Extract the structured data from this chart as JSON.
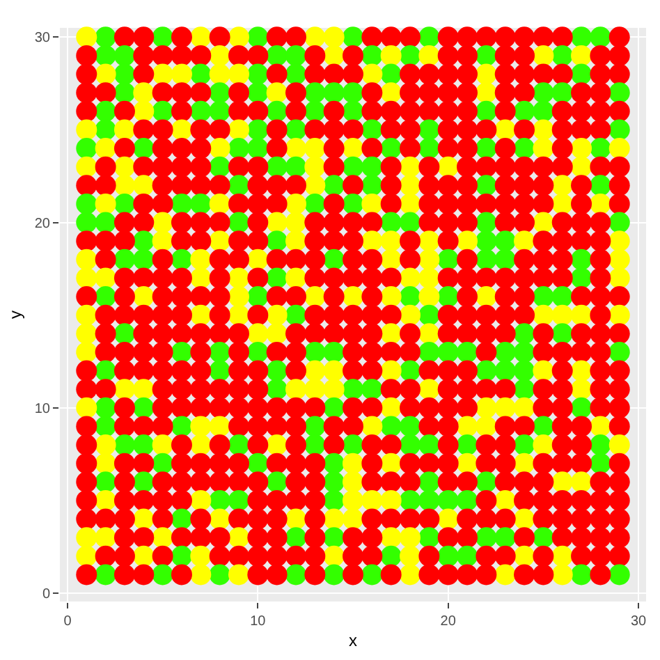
{
  "chart_data": {
    "type": "scatter",
    "xlabel": "x",
    "ylabel": "y",
    "xlim": [
      -0.4,
      30.4
    ],
    "ylim": [
      -0.45,
      30.5
    ],
    "xticks": [
      0,
      10,
      20,
      30
    ],
    "yticks": [
      0,
      10,
      20,
      30
    ],
    "grid": true,
    "marker": "circle",
    "series": [
      {
        "color": "#33ff00",
        "x": [
          2,
          5,
          10,
          15,
          19,
          27,
          28
        ],
        "values": [
          30,
          30,
          30,
          30,
          30,
          30,
          30
        ]
      },
      {
        "color": "#ffff00",
        "x": [
          1,
          7,
          9,
          13,
          14
        ],
        "values": [
          30,
          30,
          30,
          30,
          30
        ]
      },
      {
        "color": "#ff0000",
        "x": [
          3,
          4,
          6,
          8,
          11,
          12,
          16,
          17,
          18,
          20,
          21,
          22,
          23,
          24,
          25,
          26,
          29
        ],
        "values": [
          30,
          30,
          30,
          30,
          30,
          30,
          30,
          30,
          30,
          30,
          30,
          30,
          30,
          30,
          30,
          30,
          30
        ]
      },
      {
        "color": "#33ff00",
        "x": [
          2,
          3,
          11,
          12,
          16,
          18,
          22,
          26
        ],
        "values": [
          29,
          29,
          29,
          29,
          29,
          29,
          29,
          29
        ]
      },
      {
        "color": "#ffff00",
        "x": [
          8,
          14,
          17,
          19,
          25,
          27
        ],
        "values": [
          29,
          29,
          29,
          29,
          29,
          29
        ]
      },
      {
        "color": "#ff0000",
        "x": [
          1,
          4,
          5,
          6,
          7,
          9,
          10,
          13,
          15,
          20,
          21,
          23,
          24,
          28,
          29
        ],
        "values": [
          29,
          29,
          29,
          29,
          29,
          29,
          29,
          29,
          29,
          29,
          29,
          29,
          29,
          29,
          29
        ]
      },
      {
        "color": "#33ff00",
        "x": [
          3,
          7,
          10,
          12,
          17,
          27
        ],
        "values": [
          28,
          28,
          28,
          28,
          28,
          28
        ]
      },
      {
        "color": "#ffff00",
        "x": [
          2,
          5,
          6,
          8,
          9,
          16,
          22
        ],
        "values": [
          28,
          28,
          28,
          28,
          28,
          28,
          28
        ]
      },
      {
        "color": "#ff0000",
        "x": [
          1,
          4,
          11,
          13,
          14,
          15,
          18,
          19,
          20,
          21,
          23,
          24,
          25,
          26,
          28,
          29
        ],
        "values": [
          28,
          28,
          28,
          28,
          28,
          28,
          28,
          28,
          28,
          28,
          28,
          28,
          28,
          28,
          28,
          28
        ]
      },
      {
        "color": "#33ff00",
        "x": [
          3,
          8,
          10,
          13,
          14,
          15,
          25,
          26,
          29
        ],
        "values": [
          27,
          27,
          27,
          27,
          27,
          27,
          27,
          27,
          27
        ]
      },
      {
        "color": "#ffff00",
        "x": [
          4,
          11,
          17,
          22
        ],
        "values": [
          27,
          27,
          27,
          27
        ]
      },
      {
        "color": "#ff0000",
        "x": [
          1,
          2,
          5,
          6,
          7,
          9,
          12,
          16,
          18,
          19,
          20,
          21,
          23,
          24,
          27,
          28
        ],
        "values": [
          27,
          27,
          27,
          27,
          27,
          27,
          27,
          27,
          27,
          27,
          27,
          27,
          27,
          27,
          27,
          27
        ]
      },
      {
        "color": "#33ff00",
        "x": [
          2,
          5,
          7,
          8,
          11,
          13,
          15,
          22,
          24,
          25
        ],
        "values": [
          26,
          26,
          26,
          26,
          26,
          26,
          26,
          26,
          26,
          26
        ]
      },
      {
        "color": "#ffff00",
        "x": [
          4
        ],
        "values": [
          26
        ]
      },
      {
        "color": "#ff0000",
        "x": [
          1,
          3,
          6,
          9,
          10,
          12,
          14,
          16,
          17,
          18,
          19,
          20,
          21,
          23,
          26,
          27,
          28,
          29
        ],
        "values": [
          26,
          26,
          26,
          26,
          26,
          26,
          26,
          26,
          26,
          26,
          26,
          26,
          26,
          26,
          26,
          26,
          26,
          26
        ]
      },
      {
        "color": "#33ff00",
        "x": [
          2,
          10,
          12,
          16,
          19,
          29
        ],
        "values": [
          25,
          25,
          25,
          25,
          25,
          25
        ]
      },
      {
        "color": "#ffff00",
        "x": [
          1,
          3,
          6,
          9,
          23,
          25
        ],
        "values": [
          25,
          25,
          25,
          25,
          25,
          25
        ]
      },
      {
        "color": "#ff0000",
        "x": [
          4,
          5,
          7,
          8,
          11,
          13,
          14,
          15,
          17,
          18,
          20,
          21,
          22,
          24,
          26,
          27,
          28
        ],
        "values": [
          25,
          25,
          25,
          25,
          25,
          25,
          25,
          25,
          25,
          25,
          25,
          25,
          25,
          25,
          25,
          25,
          25
        ]
      },
      {
        "color": "#33ff00",
        "x": [
          1,
          4,
          9,
          10,
          17,
          19,
          22,
          24,
          28
        ],
        "values": [
          24,
          24,
          24,
          24,
          24,
          24,
          24,
          24,
          24
        ]
      },
      {
        "color": "#ffff00",
        "x": [
          2,
          8,
          12,
          13,
          15,
          25,
          27,
          29
        ],
        "values": [
          24,
          24,
          24,
          24,
          24,
          24,
          24,
          24
        ]
      },
      {
        "color": "#ff0000",
        "x": [
          3,
          5,
          6,
          7,
          11,
          14,
          16,
          18,
          20,
          21,
          23,
          26
        ],
        "values": [
          24,
          24,
          24,
          24,
          24,
          24,
          24,
          24,
          24,
          24,
          24,
          24
        ]
      },
      {
        "color": "#33ff00",
        "x": [
          8,
          11,
          12,
          15,
          16
        ],
        "values": [
          23,
          23,
          23,
          23,
          23
        ]
      },
      {
        "color": "#ffff00",
        "x": [
          1,
          3,
          13,
          18,
          20,
          27
        ],
        "values": [
          23,
          23,
          23,
          23,
          23,
          23
        ]
      },
      {
        "color": "#ff0000",
        "x": [
          2,
          4,
          5,
          6,
          7,
          9,
          10,
          14,
          17,
          19,
          21,
          22,
          23,
          24,
          25,
          26,
          28,
          29
        ],
        "values": [
          23,
          23,
          23,
          23,
          23,
          23,
          23,
          23,
          23,
          23,
          23,
          23,
          23,
          23,
          23,
          23,
          23,
          23
        ]
      },
      {
        "color": "#33ff00",
        "x": [
          9,
          14,
          16,
          22,
          28
        ],
        "values": [
          22,
          22,
          22,
          22,
          22
        ]
      },
      {
        "color": "#ffff00",
        "x": [
          3,
          4,
          13,
          18,
          26
        ],
        "values": [
          22,
          22,
          22,
          22,
          22
        ]
      },
      {
        "color": "#ff0000",
        "x": [
          1,
          2,
          5,
          6,
          7,
          8,
          10,
          11,
          12,
          15,
          17,
          19,
          20,
          21,
          23,
          24,
          25,
          27,
          29
        ],
        "values": [
          22,
          22,
          22,
          22,
          22,
          22,
          22,
          22,
          22,
          22,
          22,
          22,
          22,
          22,
          22,
          22,
          22,
          22,
          22
        ]
      },
      {
        "color": "#33ff00",
        "x": [
          1,
          3,
          6,
          7,
          13,
          15
        ],
        "values": [
          21,
          21,
          21,
          21,
          21,
          21
        ]
      },
      {
        "color": "#ffff00",
        "x": [
          2,
          8,
          12,
          16,
          18,
          26,
          28
        ],
        "values": [
          21,
          21,
          21,
          21,
          21,
          21,
          21
        ]
      },
      {
        "color": "#ff0000",
        "x": [
          4,
          5,
          9,
          10,
          11,
          14,
          17,
          19,
          20,
          21,
          22,
          23,
          24,
          25,
          27,
          29
        ],
        "values": [
          21,
          21,
          21,
          21,
          21,
          21,
          21,
          21,
          21,
          21,
          21,
          21,
          21,
          21,
          21,
          21
        ]
      },
      {
        "color": "#33ff00",
        "x": [
          1,
          2,
          9,
          17,
          18,
          22,
          29
        ],
        "values": [
          20,
          20,
          20,
          20,
          20,
          20,
          20
        ]
      },
      {
        "color": "#ffff00",
        "x": [
          5,
          11,
          12,
          25
        ],
        "values": [
          20,
          20,
          20,
          20
        ]
      },
      {
        "color": "#ff0000",
        "x": [
          3,
          4,
          6,
          7,
          8,
          10,
          13,
          14,
          15,
          16,
          19,
          20,
          21,
          23,
          24,
          26,
          27,
          28
        ],
        "values": [
          20,
          20,
          20,
          20,
          20,
          20,
          20,
          20,
          20,
          20,
          20,
          20,
          20,
          20,
          20,
          20,
          20,
          20
        ]
      },
      {
        "color": "#33ff00",
        "x": [
          4,
          11,
          22,
          23
        ],
        "values": [
          19,
          19,
          19,
          19
        ]
      },
      {
        "color": "#ffff00",
        "x": [
          5,
          8,
          12,
          16,
          17,
          19,
          21,
          24,
          29
        ],
        "values": [
          19,
          19,
          19,
          19,
          19,
          19,
          19,
          19,
          19
        ]
      },
      {
        "color": "#ff0000",
        "x": [
          1,
          2,
          3,
          6,
          7,
          9,
          10,
          13,
          14,
          15,
          18,
          20,
          25,
          26,
          27,
          28
        ],
        "values": [
          19,
          19,
          19,
          19,
          19,
          19,
          19,
          19,
          19,
          19,
          19,
          19,
          19,
          19,
          19,
          19
        ]
      },
      {
        "color": "#33ff00",
        "x": [
          3,
          4,
          6,
          14,
          20,
          22,
          23,
          27
        ],
        "values": [
          18,
          18,
          18,
          18,
          18,
          18,
          18,
          18
        ]
      },
      {
        "color": "#ffff00",
        "x": [
          1,
          7,
          10,
          17,
          19,
          29
        ],
        "values": [
          18,
          18,
          18,
          18,
          18,
          18
        ]
      },
      {
        "color": "#ff0000",
        "x": [
          2,
          5,
          8,
          9,
          11,
          12,
          13,
          15,
          16,
          18,
          21,
          24,
          25,
          26,
          28
        ],
        "values": [
          18,
          18,
          18,
          18,
          18,
          18,
          18,
          18,
          18,
          18,
          18,
          18,
          18,
          18,
          18
        ]
      },
      {
        "color": "#33ff00",
        "x": [
          11,
          27
        ],
        "values": [
          17,
          17
        ]
      },
      {
        "color": "#ffff00",
        "x": [
          1,
          2,
          7,
          9,
          12,
          18,
          19,
          29
        ],
        "values": [
          17,
          17,
          17,
          17,
          17,
          17,
          17,
          17
        ]
      },
      {
        "color": "#ff0000",
        "x": [
          3,
          4,
          5,
          6,
          8,
          10,
          13,
          14,
          15,
          16,
          17,
          20,
          21,
          22,
          23,
          24,
          25,
          26,
          28
        ],
        "values": [
          17,
          17,
          17,
          17,
          17,
          17,
          17,
          17,
          17,
          17,
          17,
          17,
          17,
          17,
          17,
          17,
          17,
          17,
          17
        ]
      },
      {
        "color": "#33ff00",
        "x": [
          2,
          10,
          18,
          20,
          25,
          26
        ],
        "values": [
          16,
          16,
          16,
          16,
          16,
          16
        ]
      },
      {
        "color": "#ffff00",
        "x": [
          4,
          9,
          13,
          15,
          17,
          19,
          22
        ],
        "values": [
          16,
          16,
          16,
          16,
          16,
          16,
          16
        ]
      },
      {
        "color": "#ff0000",
        "x": [
          1,
          3,
          5,
          6,
          7,
          8,
          11,
          12,
          14,
          16,
          21,
          23,
          24,
          27,
          28,
          29
        ],
        "values": [
          16,
          16,
          16,
          16,
          16,
          16,
          16,
          16,
          16,
          16,
          16,
          16,
          16,
          16,
          16,
          16
        ]
      },
      {
        "color": "#33ff00",
        "x": [
          12,
          19
        ],
        "values": [
          15,
          15
        ]
      },
      {
        "color": "#ffff00",
        "x": [
          1,
          7,
          9,
          11,
          18,
          25,
          26,
          27,
          29
        ],
        "values": [
          15,
          15,
          15,
          15,
          15,
          15,
          15,
          15,
          15
        ]
      },
      {
        "color": "#ff0000",
        "x": [
          2,
          3,
          4,
          5,
          6,
          8,
          10,
          13,
          14,
          15,
          16,
          17,
          20,
          21,
          22,
          23,
          24,
          28
        ],
        "values": [
          15,
          15,
          15,
          15,
          15,
          15,
          15,
          15,
          15,
          15,
          15,
          15,
          15,
          15,
          15,
          15,
          15,
          15
        ]
      },
      {
        "color": "#33ff00",
        "x": [
          3,
          24,
          26
        ],
        "values": [
          14,
          14,
          14
        ]
      },
      {
        "color": "#ffff00",
        "x": [
          1,
          10,
          11,
          17,
          19
        ],
        "values": [
          14,
          14,
          14,
          14,
          14
        ]
      },
      {
        "color": "#ff0000",
        "x": [
          2,
          4,
          5,
          6,
          7,
          8,
          9,
          12,
          13,
          14,
          15,
          16,
          18,
          20,
          21,
          22,
          23,
          25,
          27,
          28,
          29
        ],
        "values": [
          14,
          14,
          14,
          14,
          14,
          14,
          14,
          14,
          14,
          14,
          14,
          14,
          14,
          14,
          14,
          14,
          14,
          14,
          14,
          14,
          14
        ]
      },
      {
        "color": "#33ff00",
        "x": [
          6,
          8,
          10,
          13,
          14,
          19,
          20,
          21,
          23,
          24,
          29
        ],
        "values": [
          13,
          13,
          13,
          13,
          13,
          13,
          13,
          13,
          13,
          13,
          13
        ]
      },
      {
        "color": "#ffff00",
        "x": [
          1
        ],
        "values": [
          13
        ]
      },
      {
        "color": "#ff0000",
        "x": [
          2,
          3,
          4,
          5,
          7,
          9,
          11,
          12,
          15,
          16,
          17,
          18,
          22,
          25,
          26,
          27,
          28
        ],
        "values": [
          13,
          13,
          13,
          13,
          13,
          13,
          13,
          13,
          13,
          13,
          13,
          13,
          13,
          13,
          13,
          13,
          13
        ]
      },
      {
        "color": "#33ff00",
        "x": [
          2,
          8,
          11,
          18,
          22,
          23,
          24
        ],
        "values": [
          12,
          12,
          12,
          12,
          12,
          12,
          12
        ]
      },
      {
        "color": "#ffff00",
        "x": [
          13,
          14,
          17,
          25,
          27
        ],
        "values": [
          12,
          12,
          12,
          12,
          12
        ]
      },
      {
        "color": "#ff0000",
        "x": [
          1,
          3,
          4,
          5,
          6,
          7,
          9,
          10,
          12,
          15,
          16,
          19,
          20,
          21,
          26,
          28,
          29
        ],
        "values": [
          12,
          12,
          12,
          12,
          12,
          12,
          12,
          12,
          12,
          12,
          12,
          12,
          12,
          12,
          12,
          12,
          12
        ]
      },
      {
        "color": "#33ff00",
        "x": [
          11,
          15,
          16,
          24
        ],
        "values": [
          11,
          11,
          11,
          11
        ]
      },
      {
        "color": "#ffff00",
        "x": [
          3,
          4,
          12,
          13,
          14,
          19,
          27
        ],
        "values": [
          11,
          11,
          11,
          11,
          11,
          11,
          11
        ]
      },
      {
        "color": "#ff0000",
        "x": [
          1,
          2,
          5,
          6,
          7,
          8,
          9,
          10,
          17,
          18,
          20,
          21,
          22,
          23,
          25,
          26,
          28,
          29
        ],
        "values": [
          11,
          11,
          11,
          11,
          11,
          11,
          11,
          11,
          11,
          11,
          11,
          11,
          11,
          11,
          11,
          11,
          11,
          11
        ]
      },
      {
        "color": "#33ff00",
        "x": [
          2,
          4,
          14,
          27
        ],
        "values": [
          10,
          10,
          10,
          10
        ]
      },
      {
        "color": "#ffff00",
        "x": [
          1,
          17,
          22,
          23,
          24
        ],
        "values": [
          10,
          10,
          10,
          10,
          10
        ]
      },
      {
        "color": "#ff0000",
        "x": [
          3,
          5,
          6,
          7,
          8,
          9,
          10,
          11,
          12,
          13,
          15,
          16,
          18,
          19,
          20,
          21,
          25,
          26,
          28,
          29
        ],
        "values": [
          10,
          10,
          10,
          10,
          10,
          10,
          10,
          10,
          10,
          10,
          10,
          10,
          10,
          10,
          10,
          10,
          10,
          10,
          10,
          10
        ]
      },
      {
        "color": "#33ff00",
        "x": [
          2,
          6,
          13,
          17,
          18,
          25
        ],
        "values": [
          9,
          9,
          9,
          9,
          9,
          9
        ]
      },
      {
        "color": "#ffff00",
        "x": [
          7,
          8,
          16,
          21,
          22,
          28
        ],
        "values": [
          9,
          9,
          9,
          9,
          9,
          9
        ]
      },
      {
        "color": "#ff0000",
        "x": [
          1,
          3,
          4,
          5,
          9,
          10,
          11,
          12,
          14,
          15,
          19,
          20,
          23,
          24,
          26,
          27,
          29
        ],
        "values": [
          9,
          9,
          9,
          9,
          9,
          9,
          9,
          9,
          9,
          9,
          9,
          9,
          9,
          9,
          9,
          9,
          9
        ]
      },
      {
        "color": "#33ff00",
        "x": [
          3,
          4,
          9,
          13,
          15,
          18,
          19,
          21,
          24,
          28
        ],
        "values": [
          8,
          8,
          8,
          8,
          8,
          8,
          8,
          8,
          8,
          8
        ]
      },
      {
        "color": "#ffff00",
        "x": [
          2,
          5,
          7,
          11,
          25,
          29
        ],
        "values": [
          8,
          8,
          8,
          8,
          8,
          8
        ]
      },
      {
        "color": "#ff0000",
        "x": [
          1,
          6,
          8,
          10,
          12,
          14,
          16,
          17,
          20,
          22,
          23,
          26,
          27
        ],
        "values": [
          8,
          8,
          8,
          8,
          8,
          8,
          8,
          8,
          8,
          8,
          8,
          8,
          8
        ]
      },
      {
        "color": "#33ff00",
        "x": [
          5,
          10,
          14,
          28
        ],
        "values": [
          7,
          7,
          7,
          7
        ]
      },
      {
        "color": "#ffff00",
        "x": [
          2,
          15,
          17,
          21,
          24
        ],
        "values": [
          7,
          7,
          7,
          7,
          7
        ]
      },
      {
        "color": "#ff0000",
        "x": [
          1,
          3,
          4,
          6,
          7,
          8,
          9,
          11,
          12,
          13,
          16,
          18,
          19,
          20,
          22,
          23,
          25,
          26,
          27,
          29
        ],
        "values": [
          7,
          7,
          7,
          7,
          7,
          7,
          7,
          7,
          7,
          7,
          7,
          7,
          7,
          7,
          7,
          7,
          7,
          7,
          7,
          7
        ]
      },
      {
        "color": "#33ff00",
        "x": [
          2,
          4,
          11,
          14,
          19,
          22
        ],
        "values": [
          6,
          6,
          6,
          6,
          6,
          6
        ]
      },
      {
        "color": "#ffff00",
        "x": [
          15,
          26,
          27
        ],
        "values": [
          6,
          6,
          6
        ]
      },
      {
        "color": "#ff0000",
        "x": [
          1,
          3,
          5,
          6,
          7,
          8,
          9,
          10,
          12,
          13,
          16,
          17,
          18,
          20,
          21,
          23,
          24,
          25,
          28,
          29
        ],
        "values": [
          6,
          6,
          6,
          6,
          6,
          6,
          6,
          6,
          6,
          6,
          6,
          6,
          6,
          6,
          6,
          6,
          6,
          6,
          6,
          6
        ]
      },
      {
        "color": "#33ff00",
        "x": [
          8,
          9,
          14,
          18,
          19,
          20,
          21
        ],
        "values": [
          5,
          5,
          5,
          5,
          5,
          5,
          5
        ]
      },
      {
        "color": "#ffff00",
        "x": [
          2,
          7,
          15,
          16,
          17,
          23
        ],
        "values": [
          5,
          5,
          5,
          5,
          5,
          5
        ]
      },
      {
        "color": "#ff0000",
        "x": [
          1,
          3,
          4,
          5,
          6,
          10,
          11,
          12,
          13,
          22,
          24,
          25,
          26,
          27,
          28,
          29
        ],
        "values": [
          5,
          5,
          5,
          5,
          5,
          5,
          5,
          5,
          5,
          5,
          5,
          5,
          5,
          5,
          5,
          5
        ]
      },
      {
        "color": "#33ff00",
        "x": [
          6
        ],
        "values": [
          4
        ]
      },
      {
        "color": "#ffff00",
        "x": [
          4,
          8,
          12,
          14,
          15,
          20,
          24
        ],
        "values": [
          4,
          4,
          4,
          4,
          4,
          4,
          4
        ]
      },
      {
        "color": "#ff0000",
        "x": [
          1,
          2,
          3,
          5,
          7,
          9,
          10,
          11,
          13,
          16,
          17,
          18,
          19,
          21,
          22,
          23,
          25,
          26,
          27,
          28,
          29
        ],
        "values": [
          4,
          4,
          4,
          4,
          4,
          4,
          4,
          4,
          4,
          4,
          4,
          4,
          4,
          4,
          4,
          4,
          4,
          4,
          4,
          4,
          4
        ]
      },
      {
        "color": "#33ff00",
        "x": [
          12,
          14,
          19,
          22,
          23,
          25
        ],
        "values": [
          3,
          3,
          3,
          3,
          3,
          3
        ]
      },
      {
        "color": "#ffff00",
        "x": [
          1,
          2,
          5,
          9,
          17,
          18
        ],
        "values": [
          3,
          3,
          3,
          3,
          3,
          3
        ]
      },
      {
        "color": "#ff0000",
        "x": [
          3,
          4,
          6,
          7,
          8,
          10,
          11,
          13,
          15,
          16,
          20,
          21,
          24,
          26,
          27,
          28,
          29
        ],
        "values": [
          3,
          3,
          3,
          3,
          3,
          3,
          3,
          3,
          3,
          3,
          3,
          3,
          3,
          3,
          3,
          3,
          3
        ]
      },
      {
        "color": "#33ff00",
        "x": [
          6,
          17,
          20,
          21
        ],
        "values": [
          2,
          2,
          2,
          2
        ]
      },
      {
        "color": "#ffff00",
        "x": [
          1,
          4,
          7,
          14,
          18,
          24,
          26
        ],
        "values": [
          2,
          2,
          2,
          2,
          2,
          2,
          2
        ]
      },
      {
        "color": "#ff0000",
        "x": [
          2,
          3,
          5,
          8,
          9,
          10,
          11,
          12,
          13,
          15,
          16,
          19,
          22,
          23,
          25,
          27,
          28,
          29
        ],
        "values": [
          2,
          2,
          2,
          2,
          2,
          2,
          2,
          2,
          2,
          2,
          2,
          2,
          2,
          2,
          2,
          2,
          2,
          2
        ]
      },
      {
        "color": "#33ff00",
        "x": [
          2,
          5,
          8,
          12,
          14,
          16,
          27,
          29
        ],
        "values": [
          1,
          1,
          1,
          1,
          1,
          1,
          1,
          1
        ]
      },
      {
        "color": "#ffff00",
        "x": [
          7,
          9,
          18,
          23,
          26
        ],
        "values": [
          1,
          1,
          1,
          1,
          1
        ]
      },
      {
        "color": "#ff0000",
        "x": [
          1,
          3,
          4,
          6,
          10,
          11,
          13,
          15,
          17,
          19,
          20,
          21,
          22,
          24,
          25,
          28
        ],
        "values": [
          1,
          1,
          1,
          1,
          1,
          1,
          1,
          1,
          1,
          1,
          1,
          1,
          1,
          1,
          1,
          1
        ]
      }
    ]
  }
}
